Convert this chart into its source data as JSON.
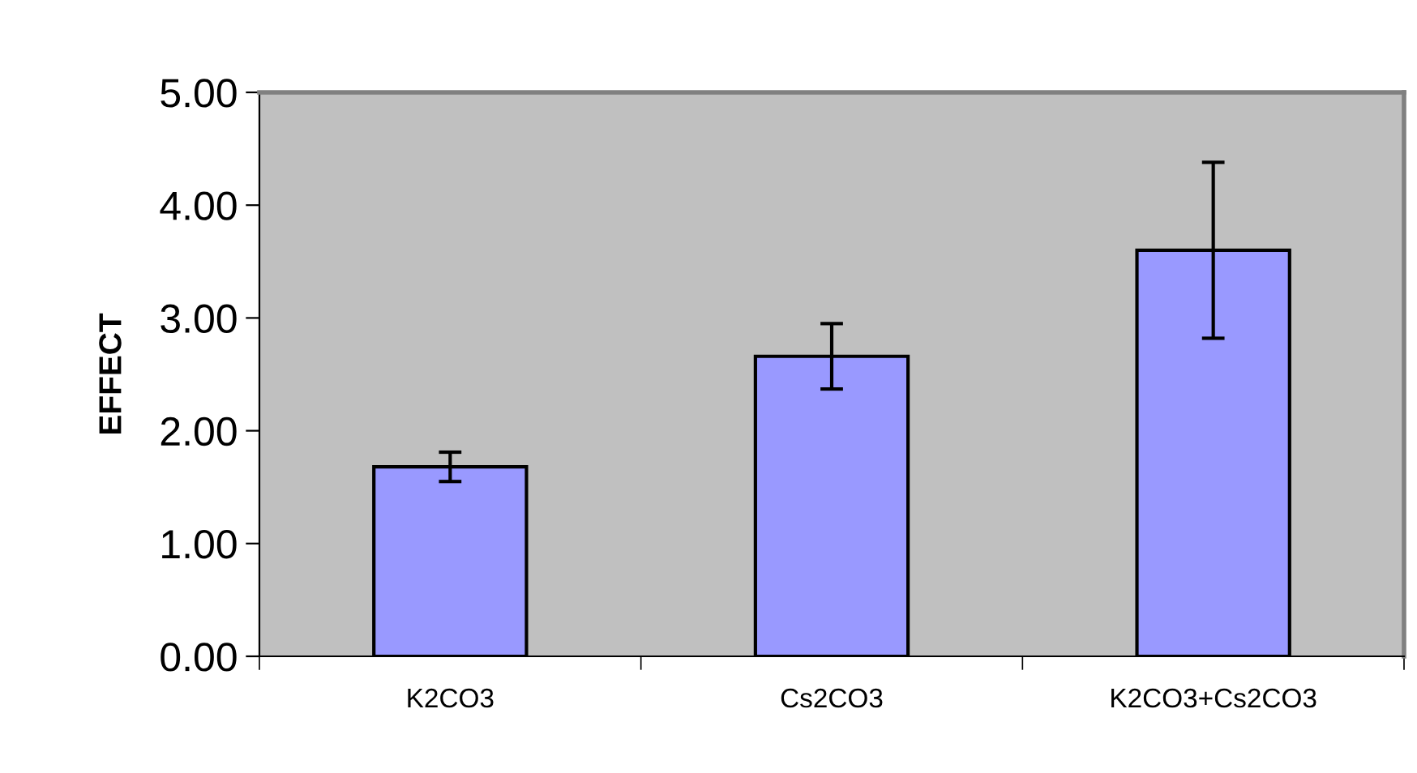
{
  "chart_data": {
    "type": "bar",
    "ylabel": "EFFECT",
    "categories": [
      "K2CO3",
      "Cs2CO3",
      "K2CO3+Cs2CO3"
    ],
    "values": [
      1.68,
      2.66,
      3.6
    ],
    "errors": [
      0.13,
      0.29,
      0.78
    ],
    "color": "#9999ff",
    "ylim": [
      0,
      5
    ],
    "yticks": [
      {
        "value": 0,
        "label": "0.00"
      },
      {
        "value": 1,
        "label": "1.00"
      },
      {
        "value": 2,
        "label": "2.00"
      },
      {
        "value": 3,
        "label": "3.00"
      },
      {
        "value": 4,
        "label": "4.00"
      },
      {
        "value": 5,
        "label": "5.00"
      }
    ],
    "grid": false,
    "legend": false
  }
}
